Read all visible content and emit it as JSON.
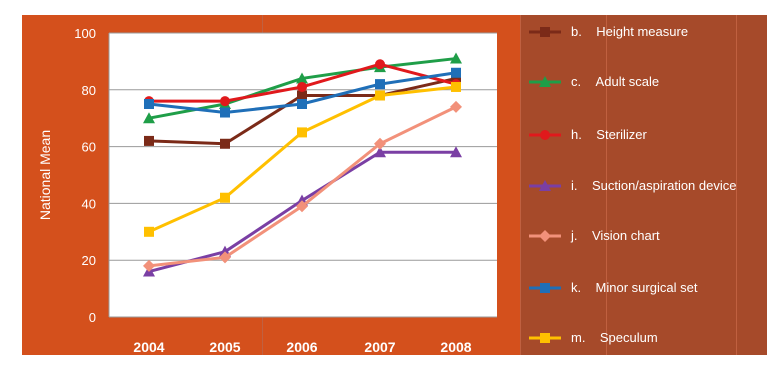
{
  "chart_data": {
    "type": "line",
    "title": "",
    "xlabel": "",
    "ylabel": "National Mean",
    "ylim": [
      0,
      100
    ],
    "yticks": [
      0,
      20,
      40,
      60,
      80,
      100
    ],
    "categories": [
      "2004",
      "2005",
      "2006",
      "2007",
      "2008"
    ],
    "legend_position": "right",
    "grid": true,
    "series": [
      {
        "name": "Height measure",
        "key": "b.",
        "color": "#7b2a18",
        "marker": "square",
        "values": [
          62,
          61,
          78,
          78,
          84
        ]
      },
      {
        "name": "Adult scale",
        "key": "c.",
        "color": "#1f9e48",
        "marker": "triangle",
        "values": [
          70,
          75,
          84,
          88,
          91
        ]
      },
      {
        "name": "Sterilizer",
        "key": "h.",
        "color": "#e0191c",
        "marker": "circle",
        "values": [
          76,
          76,
          81,
          89,
          82
        ]
      },
      {
        "name": "Suction/aspiration device",
        "key": "i.",
        "color": "#7a3fa4",
        "marker": "triangle",
        "values": [
          16,
          23,
          41,
          58,
          58
        ]
      },
      {
        "name": "Vision chart",
        "key": "j.",
        "color": "#f2917a",
        "marker": "diamond",
        "values": [
          18,
          21,
          39,
          61,
          74
        ]
      },
      {
        "name": "Minor surgical set",
        "key": "k.",
        "color": "#1f6fb8",
        "marker": "square",
        "values": [
          75,
          72,
          75,
          82,
          86
        ]
      },
      {
        "name": "Speculum",
        "key": "m.",
        "color": "#ffc000",
        "marker": "square",
        "values": [
          30,
          42,
          65,
          78,
          81
        ]
      }
    ]
  }
}
